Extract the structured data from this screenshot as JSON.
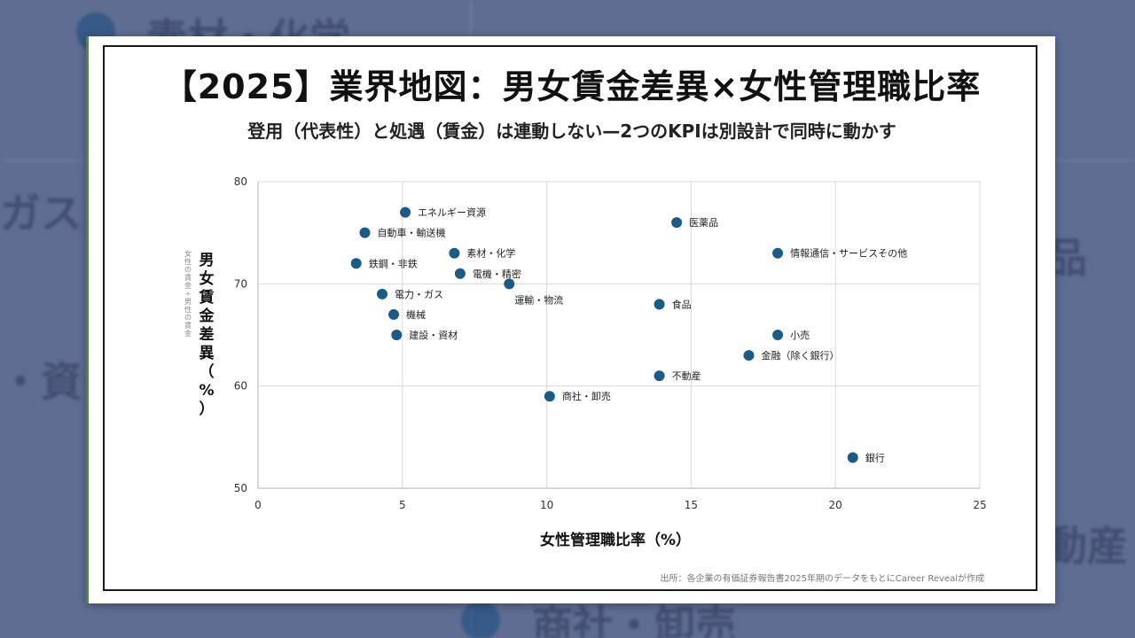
{
  "background": {
    "texts": [
      "素材・化学",
      "ガス",
      "・資",
      "品",
      "動産",
      "商社・卸売"
    ]
  },
  "slide": {
    "title": "【2025】業界地図：男女賃金差異×女性管理職比率",
    "subtitle": "登用（代表性）と処遇（賃金）は連動しない—2つのKPIは別設計で同時に動かす",
    "source": "出所：各企業の有価証券報告書2025年期のデータをもとにCareer Revealが作成"
  },
  "colors": {
    "point": "#1b5b85",
    "grid": "#d9d9d9",
    "axis": "#bfbfbf"
  },
  "chart_data": {
    "type": "scatter",
    "title": "【2025】業界地図：男女賃金差異×女性管理職比率",
    "xlabel": "女性管理職比率（%）",
    "ylabel": "男女賃金差異（%）",
    "ylabel_sub": "女性の賃金÷男性の賃金",
    "xlim": [
      0,
      25
    ],
    "ylim": [
      50,
      80
    ],
    "xticks": [
      0,
      5,
      10,
      15,
      20,
      25
    ],
    "yticks": [
      50,
      60,
      70,
      80
    ],
    "grid": true,
    "points": [
      {
        "label": "エネルギー資源",
        "x": 5.1,
        "y": 77,
        "pos": "right"
      },
      {
        "label": "自動車・輸送機",
        "x": 3.7,
        "y": 75,
        "pos": "right"
      },
      {
        "label": "素材・化学",
        "x": 6.8,
        "y": 73,
        "pos": "right"
      },
      {
        "label": "鉄鋼・非鉄",
        "x": 3.4,
        "y": 72,
        "pos": "right"
      },
      {
        "label": "電機・精密",
        "x": 7.0,
        "y": 71,
        "pos": "right"
      },
      {
        "label": "運輸・物流",
        "x": 8.7,
        "y": 70,
        "pos": "below"
      },
      {
        "label": "電力・ガス",
        "x": 4.3,
        "y": 69,
        "pos": "right"
      },
      {
        "label": "機械",
        "x": 4.7,
        "y": 67,
        "pos": "right"
      },
      {
        "label": "建設・資材",
        "x": 4.8,
        "y": 65,
        "pos": "right"
      },
      {
        "label": "医薬品",
        "x": 14.5,
        "y": 76,
        "pos": "right"
      },
      {
        "label": "情報通信・サービスその他",
        "x": 18.0,
        "y": 73,
        "pos": "right"
      },
      {
        "label": "食品",
        "x": 13.9,
        "y": 68,
        "pos": "right"
      },
      {
        "label": "小売",
        "x": 18.0,
        "y": 65,
        "pos": "right"
      },
      {
        "label": "金融（除く銀行）",
        "x": 17.0,
        "y": 63,
        "pos": "right"
      },
      {
        "label": "不動産",
        "x": 13.9,
        "y": 61,
        "pos": "right"
      },
      {
        "label": "商社・卸売",
        "x": 10.1,
        "y": 59,
        "pos": "right"
      },
      {
        "label": "銀行",
        "x": 20.6,
        "y": 53,
        "pos": "right"
      }
    ]
  }
}
